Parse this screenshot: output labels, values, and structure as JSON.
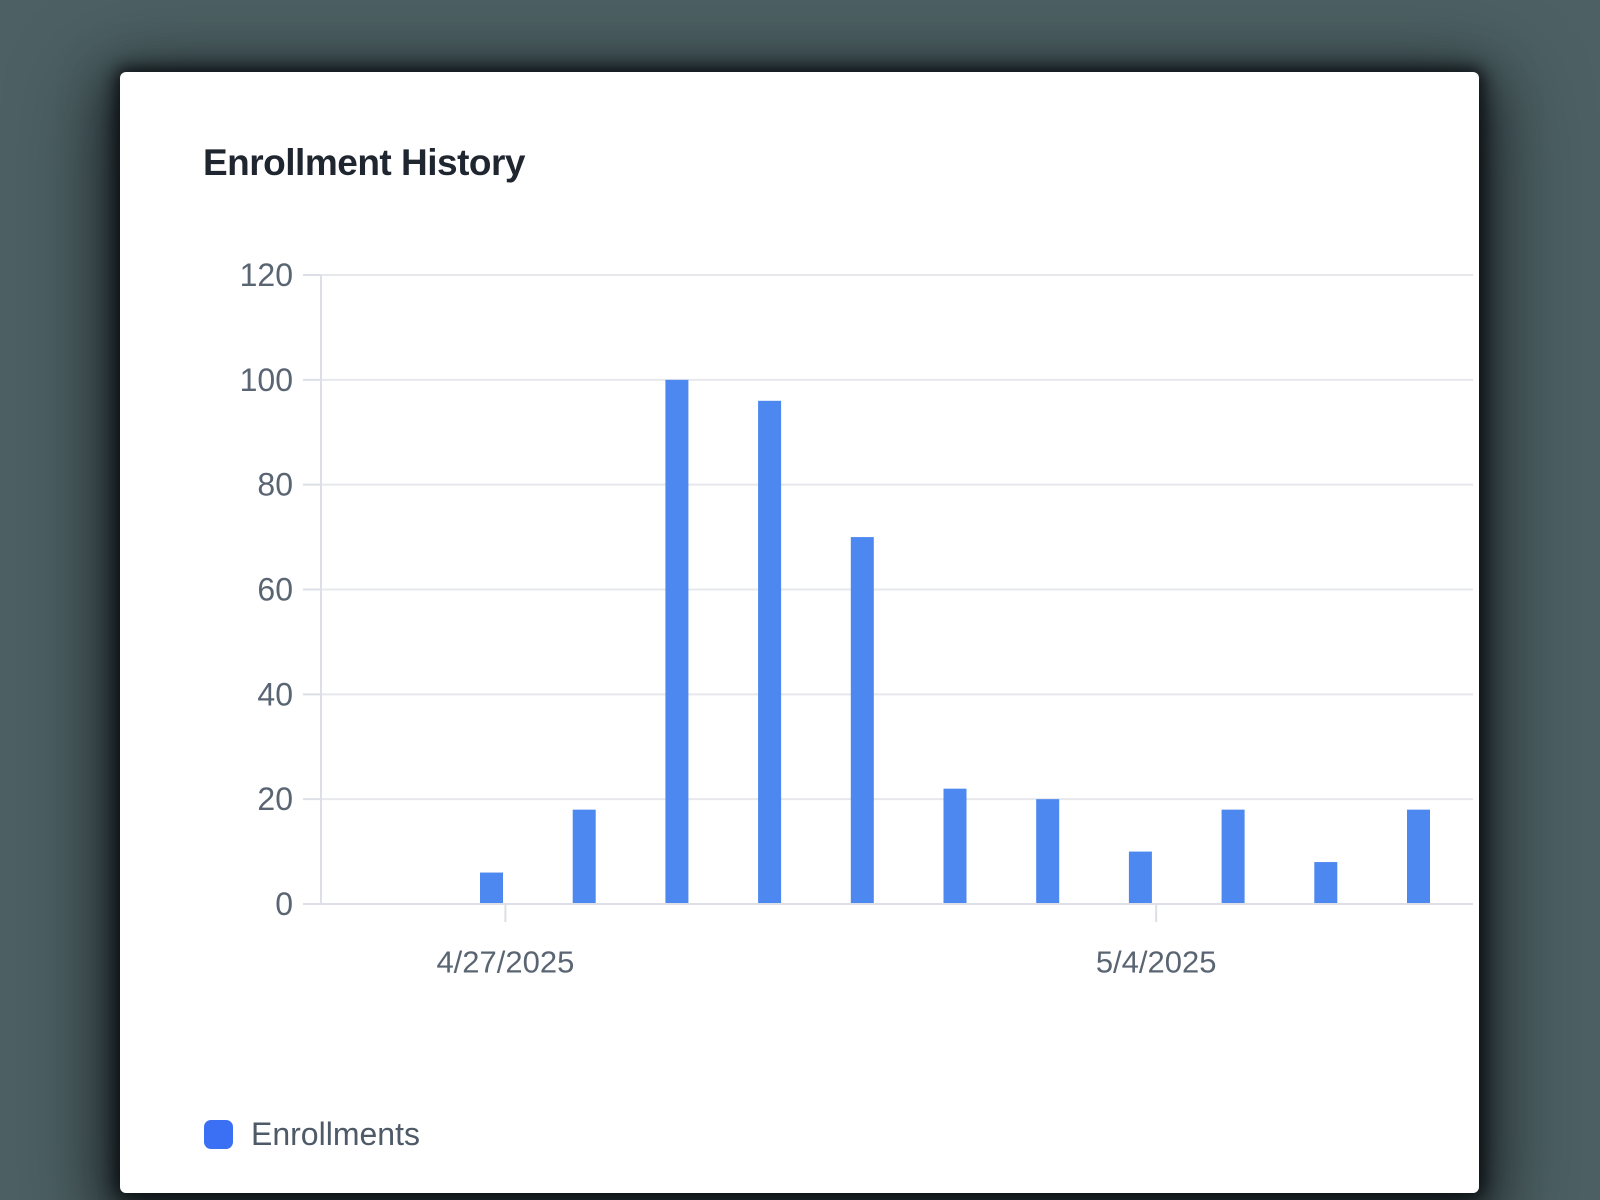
{
  "card": {
    "title": "Enrollment History"
  },
  "legend": {
    "label": "Enrollments"
  },
  "chart_data": {
    "type": "bar",
    "title": "Enrollment History",
    "series": [
      {
        "name": "Enrollments",
        "values": [
          6,
          18,
          100,
          96,
          70,
          22,
          20,
          10,
          18,
          8,
          18
        ]
      }
    ],
    "y_ticks": [
      0,
      20,
      40,
      60,
      80,
      100,
      120
    ],
    "ylim": [
      0,
      120
    ],
    "x_ticks": [
      {
        "label": "4/27/2025",
        "day_index": 0.15
      },
      {
        "label": "5/4/2025",
        "day_index": 7.17
      }
    ],
    "xlabel": "",
    "ylabel": "",
    "grid": "horizontal light gray",
    "legend_position": "bottom-left",
    "colors": {
      "bar": "#4D87F0",
      "legend_swatch": "#3C70F4",
      "grid_line": "#E6E8EC",
      "axis_line": "#DCDFE5",
      "tick_text": "#5A6573",
      "title_text": "#1F2630",
      "legend_text": "#4E5A68",
      "card_background": "#FFFFFF",
      "page_background": "#4D6164"
    }
  }
}
